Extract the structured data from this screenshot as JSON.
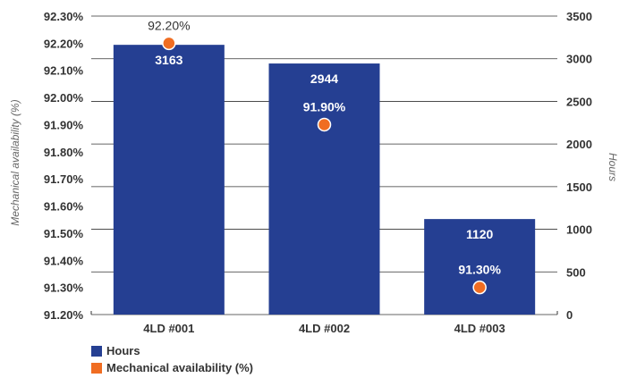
{
  "colors": {
    "bar": "#253f92",
    "point": "#f06d22",
    "grid": "#333333",
    "text": "#333333"
  },
  "chart_data": {
    "type": "bar",
    "categories": [
      "4LD #001",
      "4LD #002",
      "4LD #003"
    ],
    "series": [
      {
        "name": "Hours",
        "type": "bar",
        "axis": "right",
        "values": [
          3163,
          2944,
          1120
        ],
        "labels": [
          "3163",
          "2944",
          "1120"
        ]
      },
      {
        "name": "Mechanical availability (%)",
        "type": "scatter",
        "axis": "left",
        "values": [
          92.2,
          91.9,
          91.3
        ],
        "labels": [
          "92.20%",
          "91.90%",
          "91.30%"
        ]
      }
    ],
    "y_left": {
      "label": "Mechanical availability (%)",
      "range": [
        91.2,
        92.3
      ],
      "ticks": [
        92.3,
        92.2,
        92.1,
        92.0,
        91.9,
        91.8,
        91.7,
        91.6,
        91.5,
        91.4,
        91.3,
        91.2
      ],
      "tick_labels": [
        "92.30%",
        "92.20%",
        "92.10%",
        "92.00%",
        "91.90%",
        "91.80%",
        "91.70%",
        "91.60%",
        "91.50%",
        "91.40%",
        "91.30%",
        "91.20%"
      ]
    },
    "y_right": {
      "label": "Hours",
      "range": [
        0,
        3500
      ],
      "ticks": [
        3500,
        3000,
        2500,
        2000,
        1500,
        1000,
        500,
        0
      ],
      "tick_labels": [
        "3500",
        "3000",
        "2500",
        "2000",
        "1500",
        "1000",
        "500",
        "0"
      ]
    },
    "legend_position": "bottom-left",
    "legend": [
      "Hours",
      "Mechanical availability (%)"
    ],
    "grid": true
  }
}
